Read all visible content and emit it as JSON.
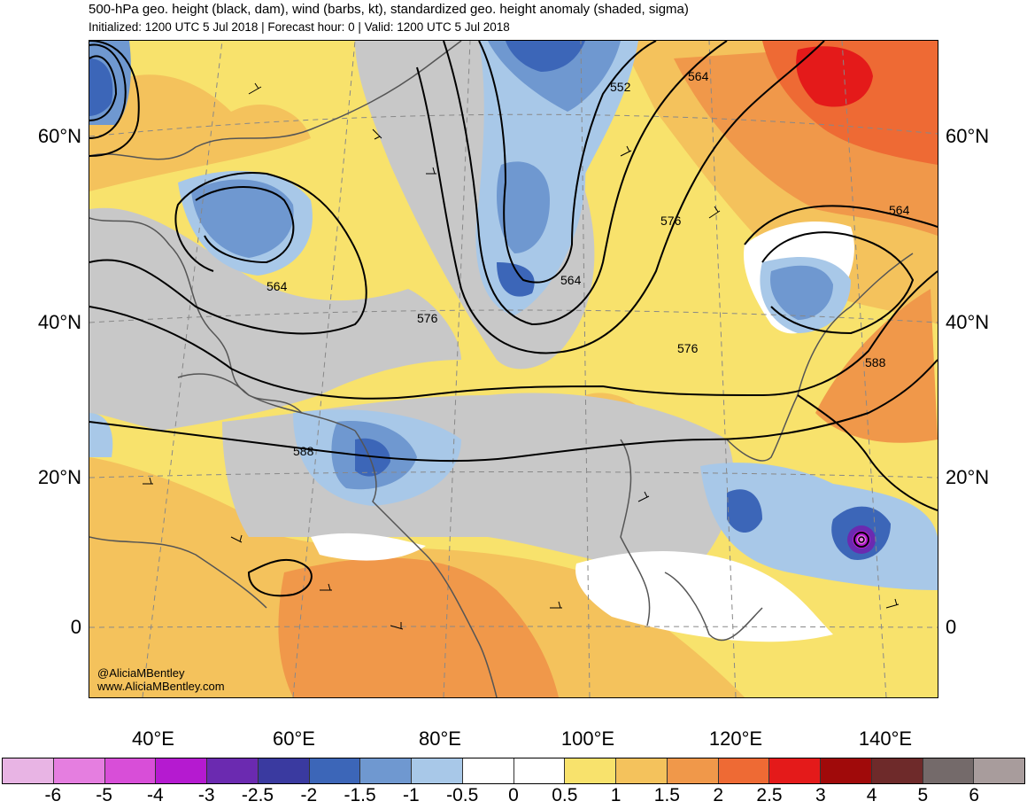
{
  "header": {
    "title": "500-hPa geo. height (black, dam), wind (barbs, kt), standardized geo. height anomaly (shaded, sigma)",
    "subtitle": "Initialized: 1200 UTC 5 Jul 2018 | Forecast hour: 0 | Valid: 1200 UTC 5 Jul 2018"
  },
  "axes": {
    "lat_labels": [
      "60°N",
      "40°N",
      "20°N",
      "0"
    ],
    "lon_labels": [
      "40°E",
      "60°E",
      "80°E",
      "100°E",
      "120°E",
      "140°E"
    ]
  },
  "contour_labels": [
    "552",
    "564",
    "564",
    "564",
    "564",
    "576",
    "576",
    "576",
    "588",
    "588"
  ],
  "credit": {
    "handle": "@AliciaMBentley",
    "site": "www.AliciaMBentley.com"
  },
  "colorbar": {
    "colors": [
      "#e8b4e4",
      "#e57ee0",
      "#d84ed8",
      "#b51ad0",
      "#6b2ab0",
      "#3a3aa0",
      "#3c66b8",
      "#6f98d0",
      "#a8c8e8",
      "#ffffff",
      "#ffffff",
      "#f8e26c",
      "#f4c25c",
      "#f0984a",
      "#ee6a34",
      "#e41a1a",
      "#a00a0a",
      "#6e2a2a",
      "#746a6a",
      "#a89c9c"
    ],
    "labels": [
      "-6",
      "-5",
      "-4",
      "-3",
      "-2.5",
      "-2",
      "-1.5",
      "-1",
      "-0.5",
      "0",
      "0.5",
      "1",
      "1.5",
      "2",
      "2.5",
      "3",
      "4",
      "5",
      "6"
    ]
  }
}
